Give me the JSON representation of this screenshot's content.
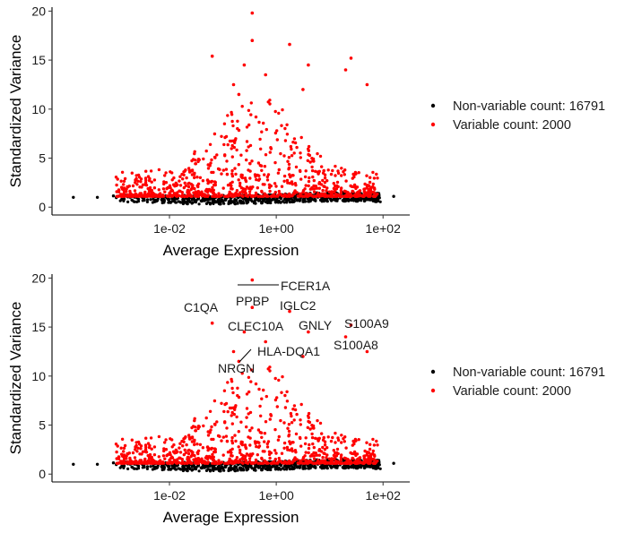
{
  "chart_data": [
    {
      "type": "scatter",
      "title": "",
      "xlabel": "Average Expression",
      "ylabel": "Standardized Variance",
      "x_scale": "log10",
      "xlim_log10": [
        -4.2,
        2.5
      ],
      "ylim": [
        -0.8,
        20.4
      ],
      "x_ticks": [
        {
          "value": -2,
          "label": "1e-02"
        },
        {
          "value": 0,
          "label": "1e+00"
        },
        {
          "value": 2,
          "label": "1e+02"
        }
      ],
      "y_ticks": [
        0,
        5,
        10,
        15,
        20
      ],
      "legend": [
        {
          "label": "Non-variable count: 16791",
          "color": "#000000"
        },
        {
          "label": "Variable count: 2000",
          "color": "#ff0000"
        }
      ],
      "highlight_points": [
        {
          "log10x": -0.45,
          "y": 19.8
        },
        {
          "log10x": -0.45,
          "y": 17.0
        },
        {
          "log10x": 0.25,
          "y": 16.6
        },
        {
          "log10x": -1.2,
          "y": 15.4
        },
        {
          "log10x": 1.4,
          "y": 15.2
        },
        {
          "log10x": -0.6,
          "y": 14.5
        },
        {
          "log10x": 0.6,
          "y": 14.5
        },
        {
          "log10x": 1.3,
          "y": 14.0
        },
        {
          "log10x": -0.2,
          "y": 13.5
        },
        {
          "log10x": 1.7,
          "y": 12.5
        },
        {
          "log10x": 0.5,
          "y": 12.0
        },
        {
          "log10x": -0.8,
          "y": 12.5
        },
        {
          "log10x": -0.7,
          "y": 11.5
        }
      ],
      "annotations": []
    },
    {
      "type": "scatter",
      "title": "",
      "xlabel": "Average Expression",
      "ylabel": "Standardized Variance",
      "x_scale": "log10",
      "xlim_log10": [
        -4.2,
        2.5
      ],
      "ylim": [
        -0.8,
        20.4
      ],
      "x_ticks": [
        {
          "value": -2,
          "label": "1e-02"
        },
        {
          "value": 0,
          "label": "1e+00"
        },
        {
          "value": 2,
          "label": "1e+02"
        }
      ],
      "y_ticks": [
        0,
        5,
        10,
        15,
        20
      ],
      "legend": [
        {
          "label": "Non-variable count: 16791",
          "color": "#000000"
        },
        {
          "label": "Variable count: 2000",
          "color": "#ff0000"
        }
      ],
      "highlight_points": [
        {
          "log10x": -0.45,
          "y": 19.8
        },
        {
          "log10x": -0.45,
          "y": 17.0
        },
        {
          "log10x": 0.25,
          "y": 16.6
        },
        {
          "log10x": -1.2,
          "y": 15.4
        },
        {
          "log10x": 1.4,
          "y": 15.2
        },
        {
          "log10x": -0.6,
          "y": 14.5
        },
        {
          "log10x": 0.6,
          "y": 14.5
        },
        {
          "log10x": 1.3,
          "y": 14.0
        },
        {
          "log10x": -0.2,
          "y": 13.5
        },
        {
          "log10x": 1.7,
          "y": 12.5
        },
        {
          "log10x": 0.5,
          "y": 12.0
        },
        {
          "log10x": -0.8,
          "y": 12.5
        },
        {
          "log10x": -0.7,
          "y": 11.5
        }
      ],
      "annotations": [
        {
          "gene": "FCER1A",
          "log10x": -0.45,
          "y": 19.8
        },
        {
          "gene": "PPBP",
          "log10x": -0.45,
          "y": 17.0
        },
        {
          "gene": "IGLC2",
          "log10x": 0.25,
          "y": 16.6
        },
        {
          "gene": "C1QA",
          "log10x": -1.2,
          "y": 15.4
        },
        {
          "gene": "S100A9",
          "log10x": 1.4,
          "y": 15.2
        },
        {
          "gene": "CLEC10A",
          "log10x": -0.6,
          "y": 14.5
        },
        {
          "gene": "GNLY",
          "log10x": 0.6,
          "y": 14.5
        },
        {
          "gene": "S100A8",
          "log10x": 1.3,
          "y": 14.0
        },
        {
          "gene": "HLA-DQA1",
          "log10x": -0.2,
          "y": 13.5
        },
        {
          "gene": "NRGN",
          "log10x": -0.7,
          "y": 11.5
        }
      ]
    }
  ]
}
